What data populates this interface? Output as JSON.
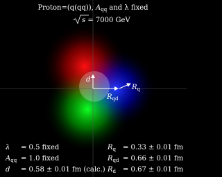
{
  "header": {
    "title": {
      "before": "Proton=(q(qq)), ",
      "symbol": "A",
      "sub": "qq",
      "after": " and λ fixed"
    },
    "energy": {
      "root": "s",
      "after": " = 7000 GeV"
    }
  },
  "labels": {
    "d": "d",
    "rqd": {
      "symbol": "R",
      "sub": "qd"
    },
    "rq": {
      "symbol": "R",
      "sub": "q"
    }
  },
  "parameters": {
    "left": [
      {
        "symbol": "λ",
        "value": "= 0.5 fixed"
      },
      {
        "symbol": "A",
        "sub": "qq",
        "value": "= 1.0 fixed"
      },
      {
        "symbol": "d",
        "value": "= 0.58 ± 0.01 fm (calc.)"
      }
    ],
    "right": [
      {
        "symbol": "R",
        "sub": "q",
        "value": "= 0.33 ± 0.01 fm"
      },
      {
        "symbol": "R",
        "sub": "qd",
        "value": "= 0.66 ± 0.01 fm"
      },
      {
        "symbol": "R",
        "sub": "d",
        "value": "= 0.67 ± 0.01 fm"
      }
    ]
  }
}
